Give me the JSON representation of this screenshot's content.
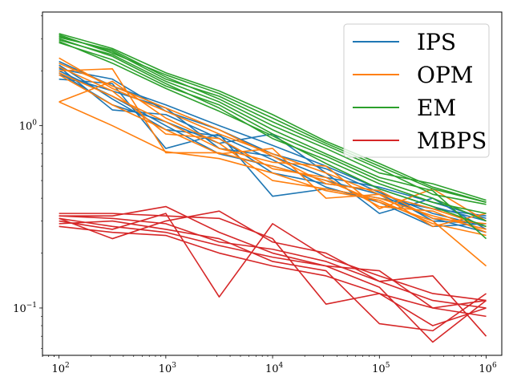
{
  "chart_data": {
    "type": "line",
    "title": "",
    "xlabel": "",
    "ylabel": "",
    "xscale": "log",
    "yscale": "log",
    "xlim": [
      70,
      1400000
    ],
    "ylim": [
      0.055,
      4.2
    ],
    "grid": false,
    "legend_position": "top-right",
    "x_ticks": [
      {
        "value": 100,
        "base": "10",
        "exp": "2"
      },
      {
        "value": 1000,
        "base": "10",
        "exp": "3"
      },
      {
        "value": 10000,
        "base": "10",
        "exp": "4"
      },
      {
        "value": 100000,
        "base": "10",
        "exp": "5"
      },
      {
        "value": 1000000,
        "base": "10",
        "exp": "6"
      }
    ],
    "y_ticks": [
      {
        "value": 0.1,
        "base": "10",
        "exp": "−1"
      },
      {
        "value": 1,
        "base": "10",
        "exp": "0"
      }
    ],
    "x": [
      100,
      316,
      1000,
      3162,
      10000,
      31623,
      100000,
      316228,
      1000000
    ],
    "series": [
      {
        "name": "IPS",
        "color": "#1f77b4",
        "runs": [
          [
            2.25,
            1.65,
            1.3,
            1.0,
            0.78,
            0.6,
            0.45,
            0.36,
            0.3
          ],
          [
            2.05,
            1.8,
            1.2,
            0.95,
            0.7,
            0.58,
            0.43,
            0.33,
            0.28
          ],
          [
            1.95,
            1.3,
            1.05,
            0.8,
            0.9,
            0.55,
            0.33,
            0.4,
            0.27
          ],
          [
            2.1,
            1.22,
            1.15,
            0.85,
            0.55,
            0.48,
            0.44,
            0.3,
            0.29
          ],
          [
            1.8,
            1.7,
            0.75,
            0.9,
            0.41,
            0.45,
            0.4,
            0.35,
            0.32
          ],
          [
            2.0,
            1.45,
            1.0,
            0.7,
            0.6,
            0.5,
            0.42,
            0.31,
            0.26
          ],
          [
            1.9,
            1.55,
            1.25,
            0.75,
            0.68,
            0.52,
            0.46,
            0.38,
            0.31
          ],
          [
            2.15,
            1.4,
            0.95,
            0.88,
            0.65,
            0.46,
            0.38,
            0.28,
            0.29
          ]
        ]
      },
      {
        "name": "OPM",
        "color": "#ff7f0e",
        "runs": [
          [
            2.35,
            1.6,
            1.2,
            0.9,
            0.7,
            0.55,
            0.42,
            0.35,
            0.28
          ],
          [
            2.0,
            2.05,
            0.71,
            0.71,
            0.6,
            0.5,
            0.38,
            0.3,
            0.17
          ],
          [
            1.35,
            1.75,
            1.1,
            0.8,
            0.5,
            0.45,
            0.4,
            0.32,
            0.27
          ],
          [
            1.95,
            1.45,
            1.05,
            0.75,
            0.63,
            0.6,
            0.35,
            0.45,
            0.3
          ],
          [
            1.9,
            1.3,
            0.95,
            0.7,
            0.75,
            0.4,
            0.42,
            0.28,
            0.33
          ],
          [
            2.1,
            1.55,
            0.9,
            0.85,
            0.58,
            0.52,
            0.36,
            0.34,
            0.26
          ],
          [
            1.35,
            1.0,
            0.72,
            0.66,
            0.55,
            0.44,
            0.39,
            0.29,
            0.25
          ],
          [
            2.2,
            1.65,
            1.25,
            0.95,
            0.68,
            0.48,
            0.44,
            0.31,
            0.29
          ]
        ]
      },
      {
        "name": "EM",
        "color": "#2ca02c",
        "runs": [
          [
            3.15,
            2.5,
            1.9,
            1.5,
            1.1,
            0.8,
            0.6,
            0.45,
            0.38
          ],
          [
            3.05,
            2.6,
            1.85,
            1.4,
            1.0,
            0.75,
            0.55,
            0.48,
            0.39
          ],
          [
            2.95,
            2.45,
            1.75,
            1.35,
            0.95,
            0.7,
            0.52,
            0.44,
            0.24
          ],
          [
            3.1,
            2.55,
            1.8,
            1.45,
            1.05,
            0.78,
            0.58,
            0.42,
            0.37
          ],
          [
            2.85,
            2.3,
            1.65,
            1.3,
            0.9,
            0.68,
            0.5,
            0.4,
            0.3
          ],
          [
            3.0,
            2.4,
            1.7,
            1.25,
            0.85,
            0.65,
            0.48,
            0.38,
            0.33
          ],
          [
            2.9,
            2.2,
            1.6,
            1.2,
            0.88,
            0.62,
            0.45,
            0.36,
            0.28
          ],
          [
            3.2,
            2.65,
            1.95,
            1.55,
            1.15,
            0.82,
            0.62,
            0.46,
            0.38
          ]
        ]
      },
      {
        "name": "MBPS",
        "color": "#d62728",
        "runs": [
          [
            0.32,
            0.32,
            0.36,
            0.26,
            0.2,
            0.17,
            0.16,
            0.1,
            0.11
          ],
          [
            0.3,
            0.27,
            0.33,
            0.115,
            0.29,
            0.19,
            0.15,
            0.12,
            0.11
          ],
          [
            0.31,
            0.24,
            0.3,
            0.34,
            0.23,
            0.2,
            0.14,
            0.15,
            0.07
          ],
          [
            0.33,
            0.33,
            0.32,
            0.31,
            0.24,
            0.105,
            0.12,
            0.08,
            0.1
          ],
          [
            0.29,
            0.3,
            0.27,
            0.24,
            0.18,
            0.16,
            0.082,
            0.075,
            0.12
          ],
          [
            0.31,
            0.28,
            0.26,
            0.22,
            0.19,
            0.17,
            0.13,
            0.065,
            0.11
          ],
          [
            0.28,
            0.26,
            0.25,
            0.2,
            0.17,
            0.15,
            0.12,
            0.1,
            0.09
          ],
          [
            0.32,
            0.31,
            0.29,
            0.23,
            0.21,
            0.18,
            0.14,
            0.11,
            0.1
          ]
        ]
      }
    ]
  }
}
